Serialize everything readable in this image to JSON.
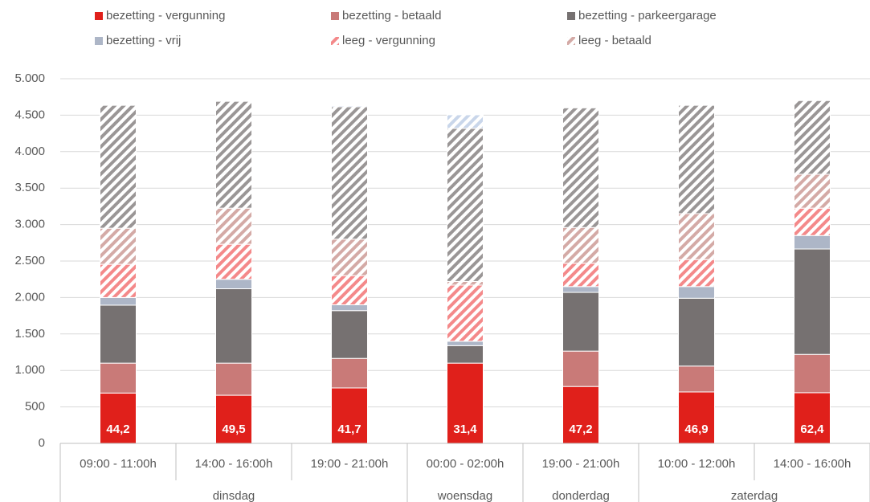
{
  "chart_data": {
    "type": "stacked_bar",
    "categories": [
      "09:00 - 11:00h",
      "14:00 - 16:00h",
      "19:00 - 21:00h",
      "00:00 - 02:00h",
      "19:00 - 21:00h",
      "10:00 - 12:00h",
      "14:00 - 16:00h"
    ],
    "category_groups": [
      "dinsdag",
      "dinsdag",
      "dinsdag",
      "woensdag",
      "donderdag",
      "zaterdag",
      "zaterdag"
    ],
    "series": [
      {
        "name": "bezetting - vergunning",
        "color": "#e0201b",
        "hatch": false,
        "values": [
          690,
          660,
          760,
          1100,
          780,
          705,
          695
        ]
      },
      {
        "name": "bezetting - betaald",
        "color": "#c97a78",
        "hatch": false,
        "values": [
          410,
          440,
          405,
          0,
          485,
          355,
          525
        ]
      },
      {
        "name": "bezetting - parkeergarage",
        "color": "#767171",
        "hatch": false,
        "values": [
          795,
          1020,
          655,
          240,
          805,
          930,
          1445
        ]
      },
      {
        "name": "bezetting - vrij",
        "color": "#adb6c7",
        "hatch": false,
        "values": [
          105,
          130,
          80,
          60,
          80,
          160,
          185
        ]
      },
      {
        "name": "leeg - vergunning",
        "color": "#f4898a",
        "hatch": true,
        "values": [
          455,
          480,
          400,
          770,
          320,
          370,
          375
        ]
      },
      {
        "name": "leeg - betaald",
        "color": "#d4aaa6",
        "hatch": true,
        "values": [
          495,
          495,
          500,
          50,
          490,
          630,
          465
        ]
      },
      {
        "color": "#9a9696",
        "hatch": true,
        "values": [
          1685,
          1465,
          1815,
          2100,
          1640,
          1485,
          1010
        ]
      },
      {
        "color": "#c9d6ea",
        "hatch": true,
        "values": [
          0,
          0,
          15,
          185,
          0,
          0,
          0
        ]
      }
    ],
    "bar_labels": [
      "44,2",
      "49,5",
      "41,7",
      "31,4",
      "47,2",
      "46,9",
      "62,4"
    ],
    "ylim": [
      0,
      5000
    ],
    "yticks": [
      0,
      500,
      {
        "value": 1000,
        "label": "1.000"
      },
      {
        "value": 1500,
        "label": "1.500"
      },
      {
        "value": 2000,
        "label": "2.000"
      },
      {
        "value": 2500,
        "label": "2.500"
      },
      {
        "value": 3000,
        "label": "3.000"
      },
      {
        "value": 3500,
        "label": "3.500"
      },
      {
        "value": 4000,
        "label": "4.000"
      },
      {
        "value": 4500,
        "label": "4.500"
      },
      {
        "value": 5000,
        "label": "5.000"
      }
    ],
    "grid": true
  }
}
